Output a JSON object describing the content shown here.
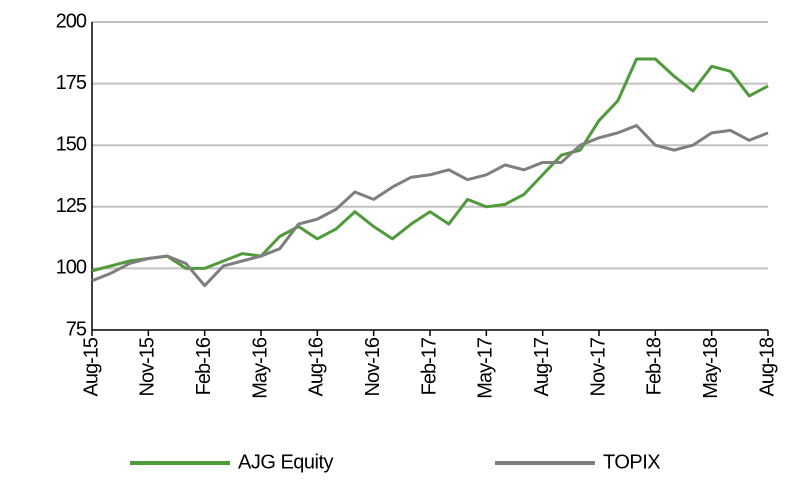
{
  "chart_data": {
    "type": "line",
    "categories": [
      "Aug-15",
      null,
      null,
      "Nov-15",
      null,
      null,
      "Feb-16",
      null,
      null,
      "May-16",
      null,
      null,
      "Aug-16",
      null,
      null,
      "Nov-16",
      null,
      null,
      "Feb-17",
      null,
      null,
      "May-17",
      null,
      null,
      "Aug-17",
      null,
      null,
      "Nov-17",
      null,
      null,
      "Feb-18",
      null,
      null,
      "May-18",
      null,
      null,
      "Aug-18"
    ],
    "series": [
      {
        "name": "AJG Equity",
        "color": "#4f9a3a",
        "values": [
          99,
          101,
          103,
          104,
          105,
          100,
          100,
          103,
          106,
          105,
          113,
          117,
          112,
          116,
          123,
          117,
          112,
          118,
          123,
          118,
          128,
          125,
          126,
          130,
          138,
          146,
          148,
          160,
          168,
          185,
          185,
          178,
          172,
          182,
          180,
          170,
          174
        ]
      },
      {
        "name": "TOPIX",
        "color": "#7f7f7f",
        "values": [
          95,
          98,
          102,
          104,
          105,
          102,
          93,
          101,
          103,
          105,
          108,
          118,
          120,
          124,
          131,
          128,
          133,
          137,
          138,
          140,
          136,
          138,
          142,
          140,
          143,
          143,
          150,
          153,
          155,
          158,
          150,
          148,
          150,
          155,
          156,
          152,
          155
        ]
      }
    ],
    "ylim": [
      75,
      200
    ],
    "yticks": [
      75,
      100,
      125,
      150,
      175,
      200
    ],
    "grid": true,
    "legend": "bottom"
  }
}
